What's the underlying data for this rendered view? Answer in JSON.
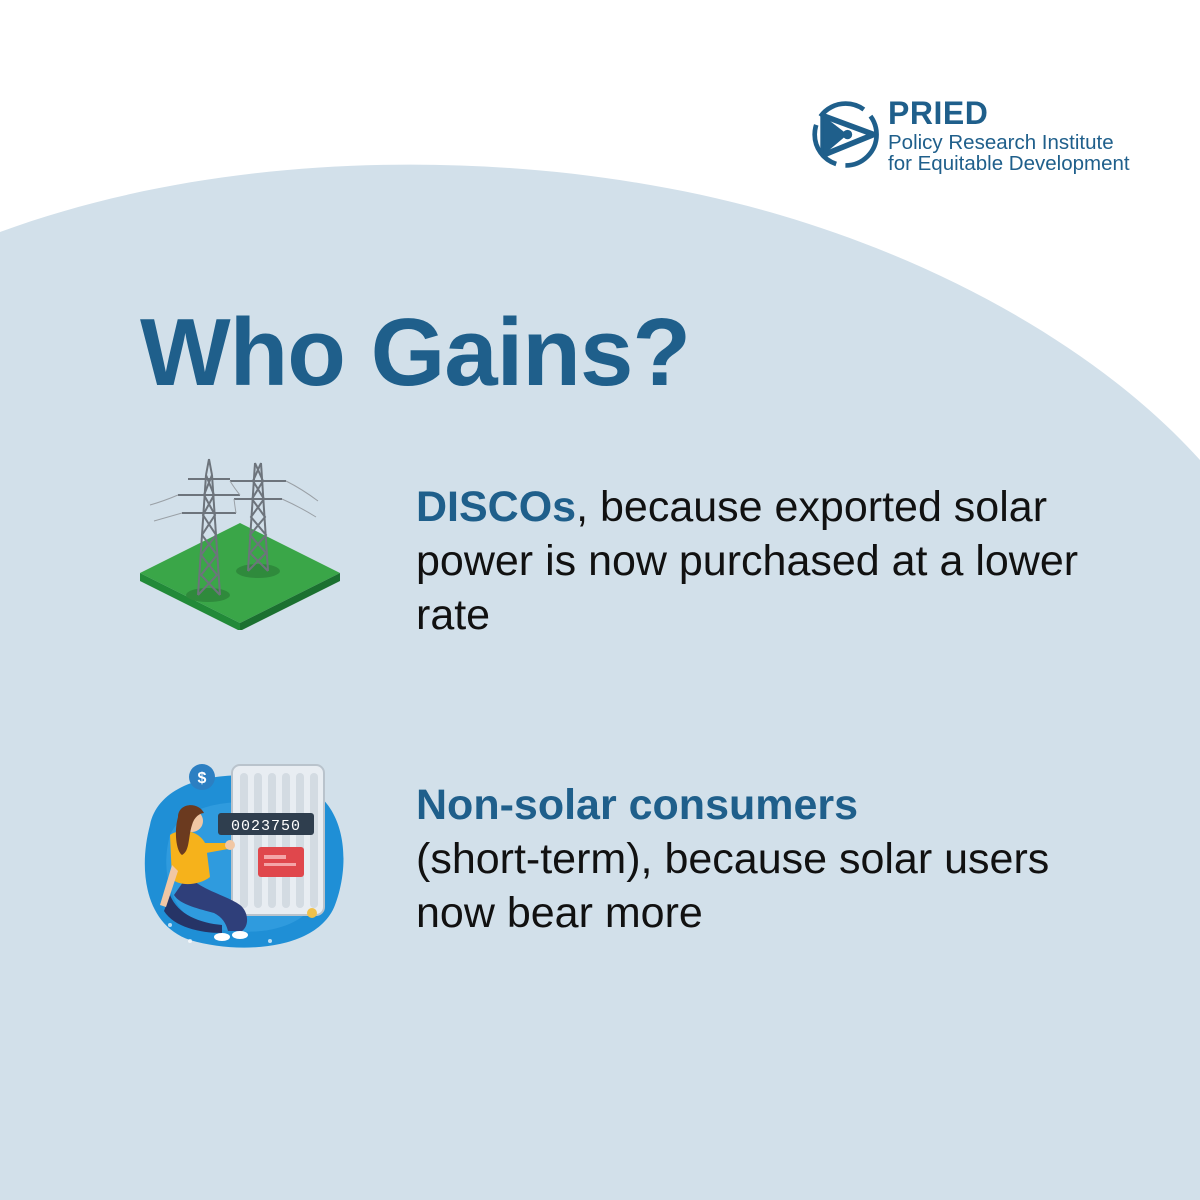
{
  "logo": {
    "name": "PRIED",
    "line1": "Policy Research Institute",
    "line2": "for Equitable Development",
    "icon": "pried-logo-mark"
  },
  "title": "Who Gains?",
  "items": [
    {
      "highlight": "DISCOs",
      "rest": ", because exported solar power is now purchased at a lower rate",
      "icon": "transmission-towers-icon"
    },
    {
      "highlight": "Non-solar consumers",
      "rest": " (short-term), because solar users now bear more",
      "icon": "electricity-meter-woman-icon"
    }
  ],
  "meter_reading": "0023750",
  "colors": {
    "accent": "#1f5f8b",
    "background_arc": "#d2e0ea",
    "text": "#111111"
  }
}
